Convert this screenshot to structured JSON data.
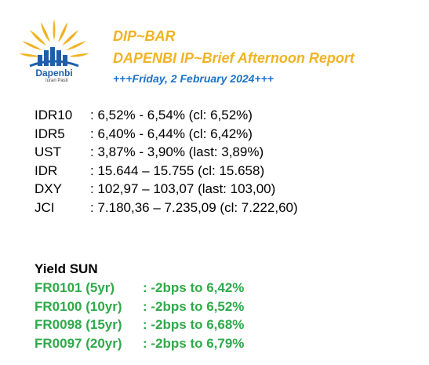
{
  "logo": {
    "name": "Dapenbi",
    "tagline": "Iuran Pasti",
    "colors": {
      "sun": "#f0b323",
      "bars": "#1f5fa8"
    }
  },
  "header": {
    "title": "DIP~BAR",
    "subtitle": "DAPENBI IP~Brief Afternoon Report",
    "date": "+++Friday, 2 February 2024+++"
  },
  "rates": [
    {
      "label": "IDR10",
      "value": ": 6,52% - 6,54% (cl: 6,52%)"
    },
    {
      "label": "IDR5",
      "value": ": 6,40% - 6,44% (cl: 6,42%)"
    },
    {
      "label": "UST",
      "value": ": 3,87% - 3,90% (last: 3,89%)"
    },
    {
      "label": "IDR",
      "value": ": 15.644 – 15.755 (cl: 15.658)"
    },
    {
      "label": "DXY",
      "value": ": 102,97 – 103,07 (last: 103,00)"
    },
    {
      "label": "JCI",
      "value": ": 7.180,36 – 7.235,09 (cl: 7.222,60)"
    }
  ],
  "yield_sun": {
    "title": "Yield SUN",
    "items": [
      {
        "label": "FR0101 (5yr)",
        "value": ": -2bps to 6,42%"
      },
      {
        "label": "FR0100 (10yr)",
        "value": ": -2bps to 6,52%"
      },
      {
        "label": "FR0098 (15yr)",
        "value": ": -2bps to 6,68%"
      },
      {
        "label": "FR0097 (20yr)",
        "value": ": -2bps to 6,79%"
      }
    ]
  },
  "colors": {
    "title": "#f0b323",
    "date": "#1f73c6",
    "yield": "#2eaa4a"
  }
}
